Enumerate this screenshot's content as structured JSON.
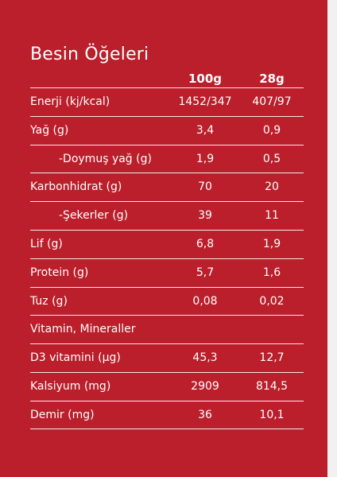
{
  "title": "Besin Öğeleri",
  "columns": [
    "100g",
    "28g"
  ],
  "rows": [
    {
      "label": "Enerji (kj/kcal)",
      "v100": "1452/347",
      "v28": "407/97",
      "indent": false
    },
    {
      "label": "Yağ (g)",
      "v100": "3,4",
      "v28": "0,9",
      "indent": false
    },
    {
      "label": "-Doymuş yağ (g)",
      "v100": "1,9",
      "v28": "0,5",
      "indent": true
    },
    {
      "label": "Karbonhidrat (g)",
      "v100": "70",
      "v28": "20",
      "indent": false
    },
    {
      "label": "-Şekerler (g)",
      "v100": "39",
      "v28": "11",
      "indent": true
    },
    {
      "label": "Lif (g)",
      "v100": "6,8",
      "v28": "1,9",
      "indent": false
    },
    {
      "label": "Protein (g)",
      "v100": "5,7",
      "v28": "1,6",
      "indent": false
    },
    {
      "label": "Tuz (g)",
      "v100": "0,08",
      "v28": "0,02",
      "indent": false
    },
    {
      "label": "Vitamin, Mineraller",
      "v100": "",
      "v28": "",
      "indent": false
    },
    {
      "label": "D3 vitamini (µg)",
      "v100": "45,3",
      "v28": "12,7",
      "indent": false
    },
    {
      "label": "Kalsiyum (mg)",
      "v100": "2909",
      "v28": "814,5",
      "indent": false
    },
    {
      "label": "Demir (mg)",
      "v100": "36",
      "v28": "10,1",
      "indent": false
    }
  ]
}
